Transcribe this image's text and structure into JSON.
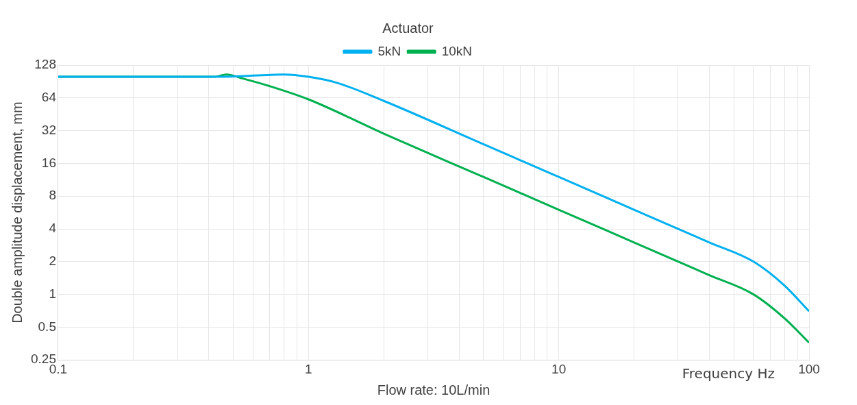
{
  "chart_data": {
    "type": "line",
    "title": "Actuator",
    "xlabel": "Flow rate: 10L/min",
    "ylabel": "Double amplitude displacement, mm",
    "annotations": [
      "Frequency Hz"
    ],
    "log": "xy",
    "grid": true,
    "legend": "top",
    "marker": "none",
    "line_style": "solid",
    "xlim": [
      0.1,
      100
    ],
    "xticks": [
      0.1,
      {
        "value": 0.2,
        "label": null
      },
      {
        "value": 0.3,
        "label": null
      },
      {
        "value": 0.4,
        "label": null
      },
      {
        "value": 0.5,
        "label": null
      },
      {
        "value": 0.6,
        "label": null
      },
      {
        "value": 0.7,
        "label": null
      },
      {
        "value": 0.8,
        "label": null
      },
      {
        "value": 0.9,
        "label": null
      },
      1,
      {
        "value": 2,
        "label": null
      },
      {
        "value": 3,
        "label": null
      },
      {
        "value": 4,
        "label": null
      },
      {
        "value": 5,
        "label": null
      },
      {
        "value": 6,
        "label": null
      },
      {
        "value": 7,
        "label": null
      },
      {
        "value": 8,
        "label": null
      },
      {
        "value": 9,
        "label": null
      },
      10,
      {
        "value": 20,
        "label": null
      },
      {
        "value": 30,
        "label": null
      },
      {
        "value": 40,
        "label": null
      },
      {
        "value": 50,
        "label": null
      },
      {
        "value": 60,
        "label": null
      },
      {
        "value": 70,
        "label": null
      },
      {
        "value": 80,
        "label": null
      },
      {
        "value": 90,
        "label": null
      },
      100
    ],
    "ylim": [
      0.25,
      128
    ],
    "yticks": [
      0.25,
      0.5,
      1,
      2,
      4,
      8,
      16,
      32,
      64,
      128
    ],
    "series": [
      {
        "name": "5kN",
        "color": "#00b0f0",
        "x": [
          0.1,
          0.45,
          0.8,
          1,
          1.3,
          2,
          5,
          10,
          20,
          40,
          60,
          80,
          100
        ],
        "values": [
          100,
          100,
          105,
          100,
          88,
          60,
          24,
          12,
          6,
          3,
          2,
          1.2,
          0.7
        ]
      },
      {
        "name": "10kN",
        "color": "#00b050",
        "x": [
          0.1,
          0.42,
          0.47,
          0.55,
          0.7,
          1,
          2,
          5,
          10,
          20,
          40,
          60,
          80,
          100
        ],
        "values": [
          100,
          100,
          105,
          96,
          82,
          62,
          30,
          12,
          6,
          3,
          1.5,
          1,
          0.6,
          0.36
        ]
      }
    ]
  }
}
